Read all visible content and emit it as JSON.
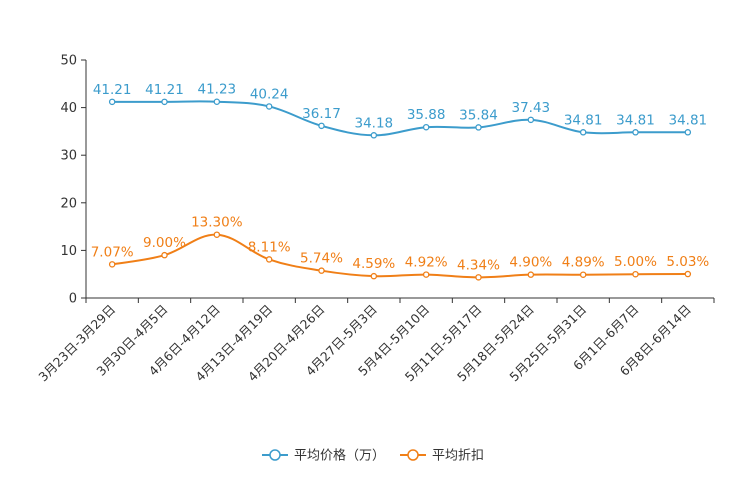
{
  "chart_data": {
    "type": "line",
    "categories": [
      "3月23日-3月29日",
      "3月30日-4月5日",
      "4月6日-4月12日",
      "4月13日-4月19日",
      "4月20日-4月26日",
      "4月27日-5月3日",
      "5月4日-5月10日",
      "5月11日-5月17日",
      "5月18日-5月24日",
      "5月25日-5月31日",
      "6月1日-6月7日",
      "6月8日-6月14日"
    ],
    "series": [
      {
        "name": "平均价格（万）",
        "color": "#3c9ccc",
        "values": [
          41.21,
          41.21,
          41.23,
          40.24,
          36.17,
          34.18,
          35.88,
          35.84,
          37.43,
          34.81,
          34.81,
          34.81
        ],
        "labels": [
          "41.21",
          "41.21",
          "41.23",
          "40.24",
          "36.17",
          "34.18",
          "35.88",
          "35.84",
          "37.43",
          "34.81",
          "34.81",
          "34.81"
        ]
      },
      {
        "name": "平均折扣",
        "color": "#f07f17",
        "values": [
          7.07,
          9.0,
          13.3,
          8.11,
          5.74,
          4.59,
          4.92,
          4.34,
          4.9,
          4.89,
          5.0,
          5.03
        ],
        "labels": [
          "7.07%",
          "9.00%",
          "13.30%",
          "8.11%",
          "5.74%",
          "4.59%",
          "4.92%",
          "4.34%",
          "4.90%",
          "4.89%",
          "5.00%",
          "5.03%"
        ]
      }
    ],
    "y_ticks": [
      "0",
      "10",
      "20",
      "30",
      "40",
      "50"
    ],
    "ylim": [
      0,
      50
    ],
    "title": "",
    "xlabel": "",
    "ylabel": "",
    "legend_position": "bottom-center"
  }
}
